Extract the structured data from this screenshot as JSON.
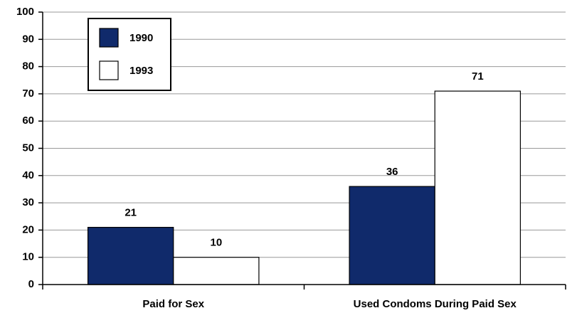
{
  "chart_data": {
    "type": "bar",
    "categories": [
      "Paid for Sex",
      "Used Condoms During Paid Sex"
    ],
    "series": [
      {
        "name": "1990",
        "color": "#102a6b",
        "values": [
          21,
          36
        ]
      },
      {
        "name": "1993",
        "color": "#ffffff",
        "values": [
          10,
          71
        ]
      }
    ],
    "ylim": [
      0,
      100
    ],
    "yticks": [
      0,
      10,
      20,
      30,
      40,
      50,
      60,
      70,
      80,
      90,
      100
    ],
    "grid": true,
    "legend": "top-left",
    "data_labels": true
  }
}
